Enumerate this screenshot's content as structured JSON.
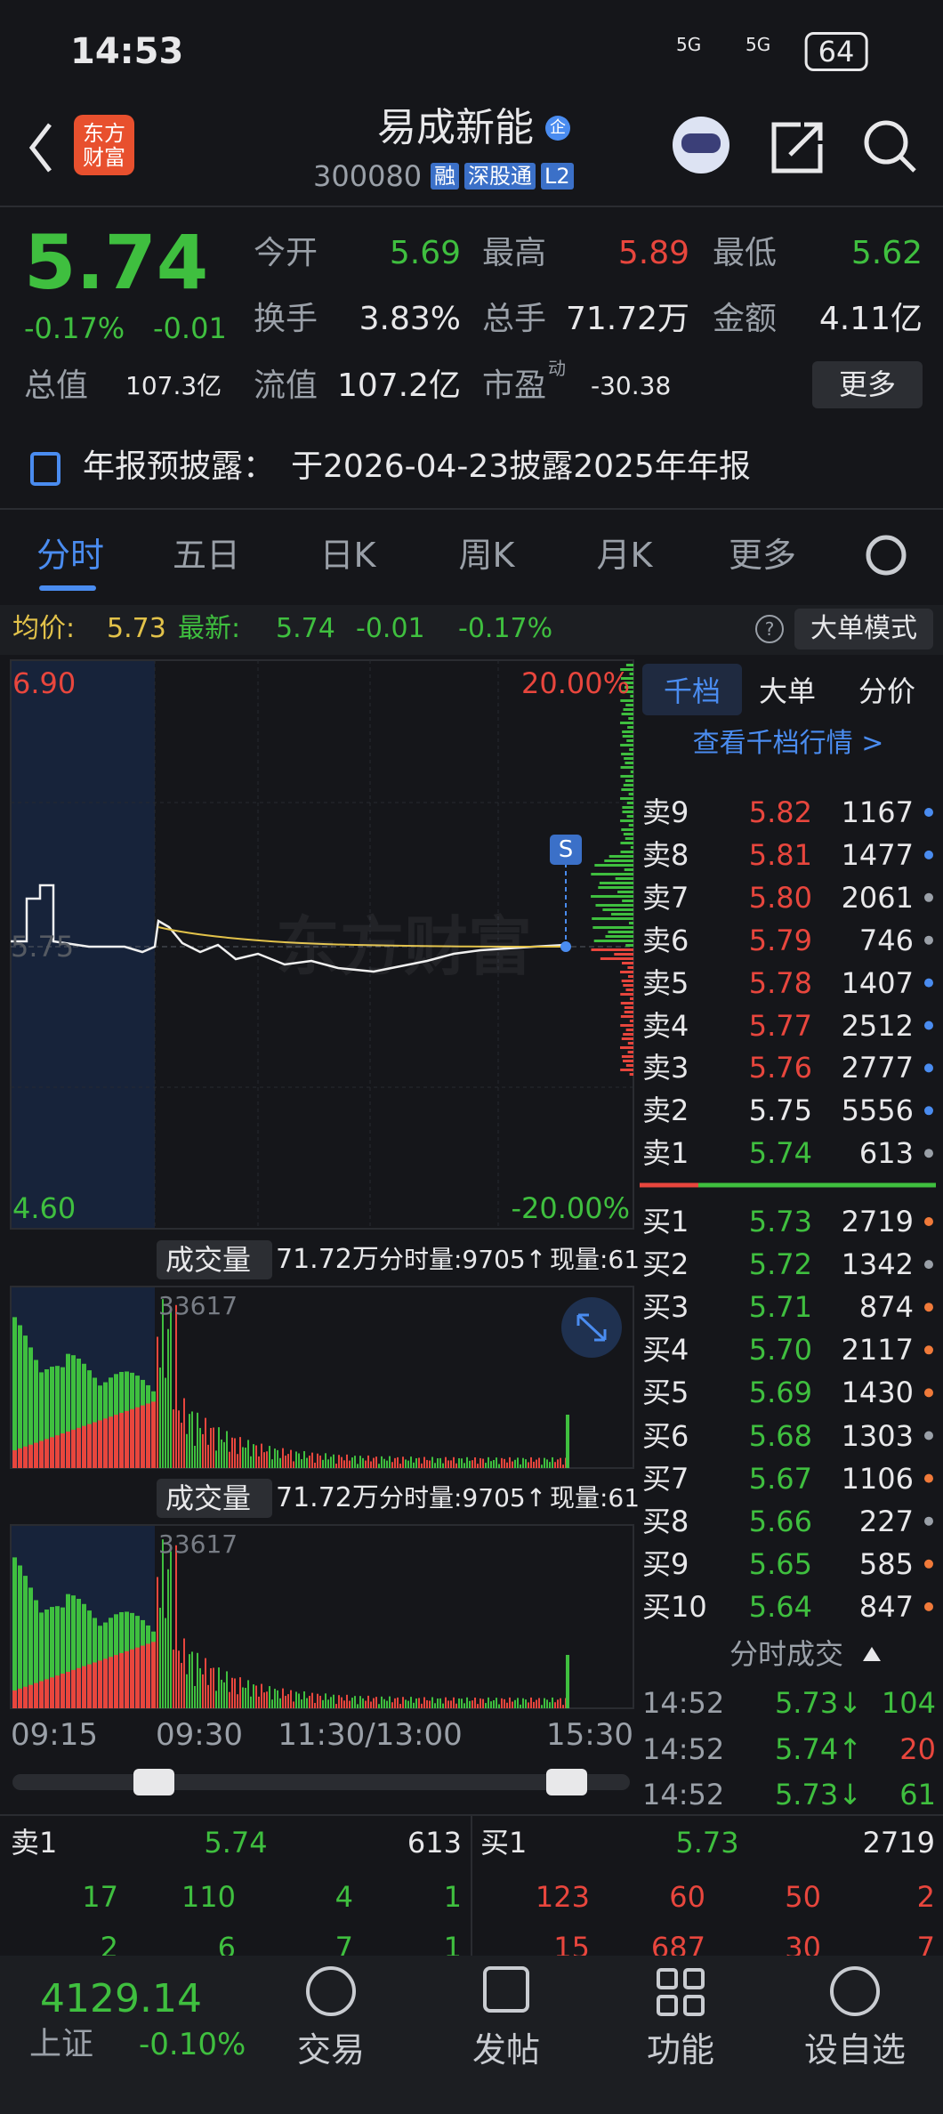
{
  "status_bar": {
    "time": "14:53",
    "network": "5G",
    "network2": "5G",
    "battery": "64"
  },
  "header": {
    "logo": [
      "东方",
      "财富"
    ],
    "title": "易成新能",
    "badge": "企",
    "code": "300080",
    "tags": [
      "融",
      "深股通",
      "L2"
    ]
  },
  "quote": {
    "price": "5.74",
    "change_pct": "-0.17%",
    "change": "-0.01",
    "fields": [
      {
        "label": "今开",
        "value": "5.69"
      },
      {
        "label": "最高",
        "value": "5.89"
      },
      {
        "label": "最低",
        "value": "5.62"
      },
      {
        "label": "换手",
        "value": "3.83%"
      },
      {
        "label": "总手",
        "value": "71.72万"
      },
      {
        "label": "金额",
        "value": "4.11亿"
      },
      {
        "label": "总值",
        "value": "107.3亿"
      },
      {
        "label": "流值",
        "value": "107.2亿"
      },
      {
        "label": "市盈",
        "sup": "动",
        "value": "-30.38"
      }
    ],
    "more": "更多"
  },
  "notice": {
    "label": "年报预披露：",
    "text": "于2026-04-23披露2025年年报"
  },
  "tabs": [
    "分时",
    "五日",
    "日K",
    "周K",
    "月K",
    "更多"
  ],
  "intraday": {
    "avg_label": "均价:",
    "avg": "5.73",
    "last_label": "最新:",
    "last": "5.74",
    "change": "-0.01",
    "change_pct": "-0.17%",
    "help": "?",
    "mode_button": "大单模式",
    "y_max": "6.90",
    "y_min": "4.60",
    "pct_max": "20.00%",
    "pct_min": "-20.00%",
    "prev_close": "5.75",
    "signal": "S",
    "watermark": "东方财富",
    "time_labels": [
      "09:15",
      "09:30",
      "11:30/13:00",
      "15:30"
    ]
  },
  "volume_panels": [
    {
      "label": "成交量",
      "total": "71.72万",
      "minute_volume": "分时量:9705↑",
      "current": "现量:61",
      "peak": "33617"
    },
    {
      "label": "成交量",
      "total": "71.72万",
      "minute_volume": "分时量:9705↑",
      "current": "现量:61",
      "peak": "33617"
    }
  ],
  "order_book": {
    "tabs": [
      "千档",
      "大单",
      "分价"
    ],
    "link": "查看千档行情 >",
    "asks": [
      {
        "label": "卖9",
        "price": "5.82",
        "volume": "1167",
        "color": "#e8463d",
        "dot": "#4a8cf0"
      },
      {
        "label": "卖8",
        "price": "5.81",
        "volume": "1477",
        "color": "#e8463d",
        "dot": "#4a8cf0"
      },
      {
        "label": "卖7",
        "price": "5.80",
        "volume": "2061",
        "color": "#e8463d",
        "dot": "#9aa0a8"
      },
      {
        "label": "卖6",
        "price": "5.79",
        "volume": "746",
        "color": "#e8463d",
        "dot": "#9aa0a8"
      },
      {
        "label": "卖5",
        "price": "5.78",
        "volume": "1407",
        "color": "#e8463d",
        "dot": "#4a8cf0"
      },
      {
        "label": "卖4",
        "price": "5.77",
        "volume": "2512",
        "color": "#e8463d",
        "dot": "#4a8cf0"
      },
      {
        "label": "卖3",
        "price": "5.76",
        "volume": "2777",
        "color": "#e8463d",
        "dot": "#4a8cf0"
      },
      {
        "label": "卖2",
        "price": "5.75",
        "volume": "5556",
        "color": "#e8e8ea",
        "dot": "#4a8cf0"
      },
      {
        "label": "卖1",
        "price": "5.74",
        "volume": "613",
        "color": "#3fbf3f",
        "dot": "#9aa0a8"
      }
    ],
    "bids": [
      {
        "label": "买1",
        "price": "5.73",
        "volume": "2719",
        "color": "#3fbf3f",
        "dot": "#f07a3a"
      },
      {
        "label": "买2",
        "price": "5.72",
        "volume": "1342",
        "color": "#3fbf3f",
        "dot": "#9aa0a8"
      },
      {
        "label": "买3",
        "price": "5.71",
        "volume": "874",
        "color": "#3fbf3f",
        "dot": "#f07a3a"
      },
      {
        "label": "买4",
        "price": "5.70",
        "volume": "2117",
        "color": "#3fbf3f",
        "dot": "#f07a3a"
      },
      {
        "label": "买5",
        "price": "5.69",
        "volume": "1430",
        "color": "#3fbf3f",
        "dot": "#f07a3a"
      },
      {
        "label": "买6",
        "price": "5.68",
        "volume": "1303",
        "color": "#3fbf3f",
        "dot": "#9aa0a8"
      },
      {
        "label": "买7",
        "price": "5.67",
        "volume": "1106",
        "color": "#3fbf3f",
        "dot": "#f07a3a"
      },
      {
        "label": "买8",
        "price": "5.66",
        "volume": "227",
        "color": "#3fbf3f",
        "dot": "#9aa0a8"
      },
      {
        "label": "买9",
        "price": "5.65",
        "volume": "585",
        "color": "#3fbf3f",
        "dot": "#f07a3a"
      },
      {
        "label": "买10",
        "price": "5.64",
        "volume": "847",
        "color": "#3fbf3f",
        "dot": "#f07a3a"
      }
    ]
  },
  "trades": {
    "title": "分时成交",
    "rows": [
      {
        "time": "14:52",
        "price": "5.73↓",
        "volume": "104",
        "color": "#3fbf3f"
      },
      {
        "time": "14:52",
        "price": "5.74↑",
        "volume": "20",
        "color": "#e8463d"
      },
      {
        "time": "14:52",
        "price": "5.73↓",
        "volume": "61",
        "color": "#3fbf3f"
      }
    ]
  },
  "depth_table": {
    "ask_head": [
      "卖1",
      "5.74",
      "613"
    ],
    "bid_head": [
      "买1",
      "5.73",
      "2719"
    ],
    "ask_rows": [
      [
        "17",
        "110",
        "4",
        "1"
      ],
      [
        "2",
        "6",
        "7",
        "1"
      ]
    ],
    "bid_rows": [
      [
        "123",
        "60",
        "50",
        "2"
      ],
      [
        "15",
        "687",
        "30",
        "7"
      ]
    ]
  },
  "nav": {
    "index_value": "4129.14",
    "index_name": "上证",
    "index_change": "-0.10%",
    "items": [
      "交易",
      "发帖",
      "功能",
      "设自选"
    ]
  }
}
